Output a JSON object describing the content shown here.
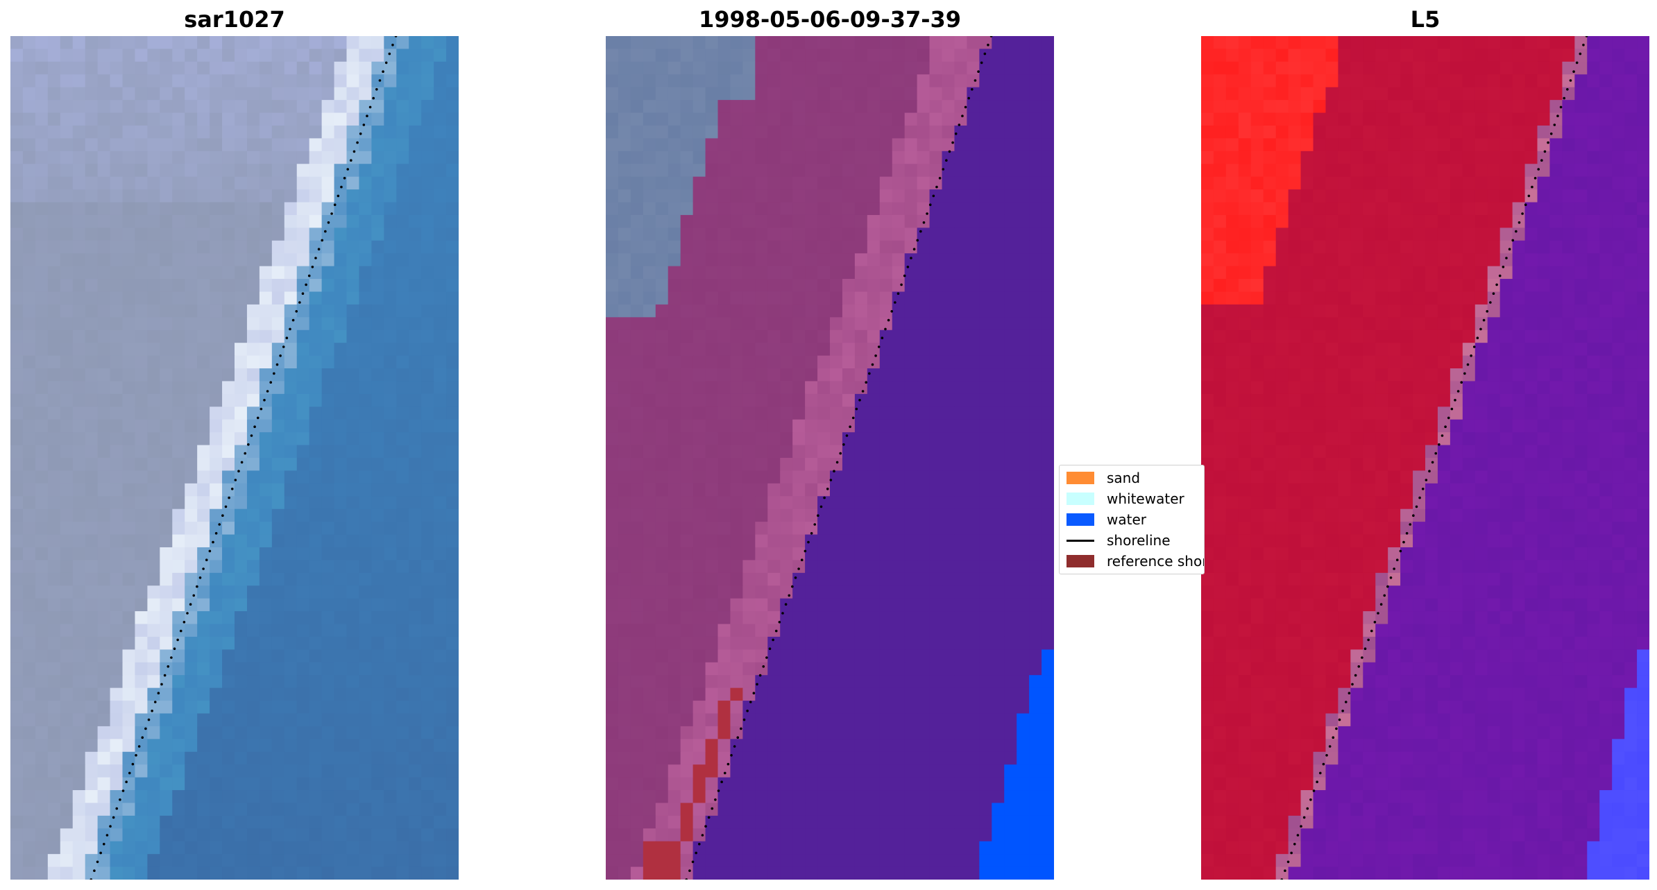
{
  "chart_data": [
    {
      "type": "heatmap",
      "panel": "rgb",
      "title": "sar1027",
      "colors": {
        "land": "#8f9ab5",
        "land_light": "#aab3e0",
        "sand_strip": "#e6eef8",
        "water": "#3f85bf",
        "water_deep": "#3b6ea8",
        "shoreline": "#000000"
      },
      "shoreline_x": [
        0.86,
        0.18
      ],
      "shoreline_y": [
        0.0,
        1.0
      ]
    },
    {
      "type": "heatmap",
      "panel": "classification",
      "title": "1998-05-06-09-37-39",
      "colors": {
        "land": "#8d3a7a",
        "sand_overlay": "#b85e9a",
        "water": "#54219a",
        "whitewater": "#0055ff",
        "grey_land": "#6a7fa6",
        "reference": "#b03040",
        "shoreline": "#000000"
      },
      "shoreline_x": [
        0.86,
        0.18
      ],
      "shoreline_y": [
        0.0,
        1.0
      ]
    },
    {
      "type": "heatmap",
      "panel": "index",
      "title": "L5",
      "colors": {
        "high": "#ff2020",
        "mid": "#c0103a",
        "low": "#6a18a8",
        "lowest": "#4a4aff",
        "shoreline": "#000000"
      },
      "shoreline_x": [
        0.86,
        0.18
      ],
      "shoreline_y": [
        0.0,
        1.0
      ]
    }
  ],
  "legend": {
    "items": [
      {
        "label": "sand",
        "color": "#ff8c33",
        "kind": "patch"
      },
      {
        "label": "whitewater",
        "color": "#c8ffff",
        "kind": "patch"
      },
      {
        "label": "water",
        "color": "#0a5aff",
        "kind": "patch"
      },
      {
        "label": "shoreline",
        "color": "#000000",
        "kind": "line"
      },
      {
        "label": "reference shoreline",
        "color": "#8f2d2d",
        "kind": "patch"
      }
    ]
  }
}
